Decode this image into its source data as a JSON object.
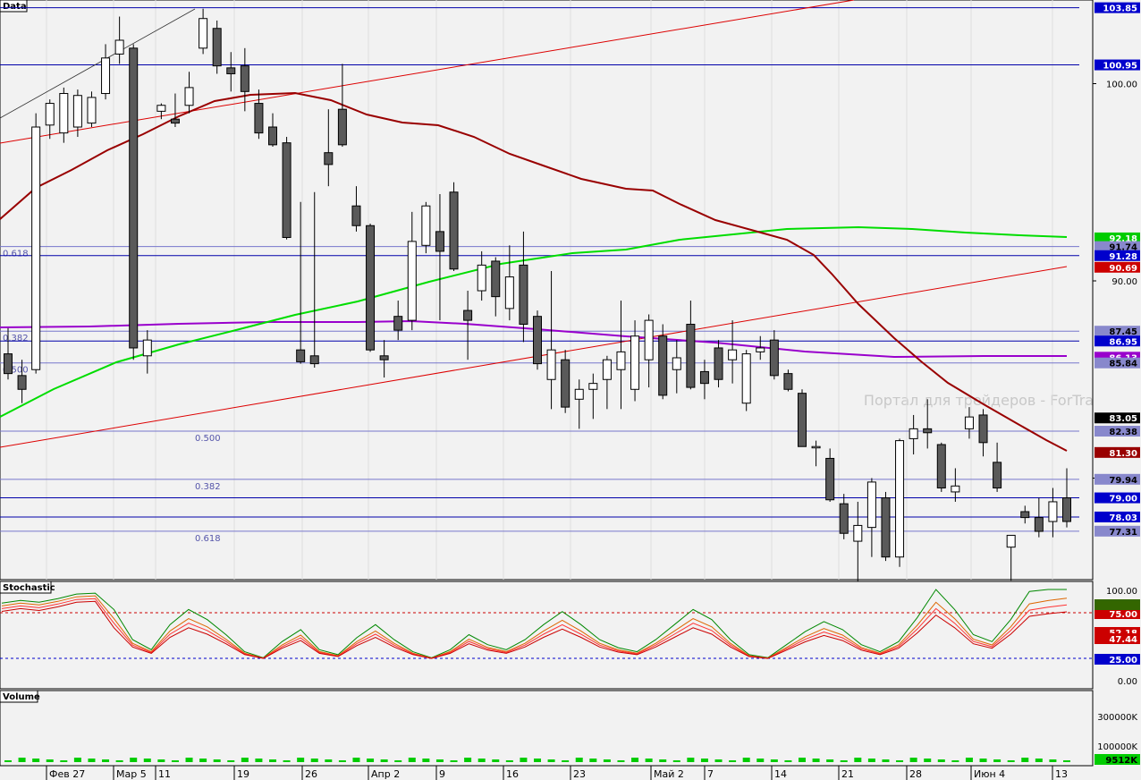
{
  "panels": {
    "data_title": "Data",
    "stochastic_title": "Stochastic",
    "volume_title": "Volume"
  },
  "watermark": "Портал для трейдеров - ForTrader.ru",
  "colors": {
    "background": "#f2f2f2",
    "up_candle": "#ffffff",
    "down_candle": "#5a5a5a",
    "ma_short": "#990000",
    "ma_medium": "#00dd00",
    "ma_long": "#9900cc",
    "trendline": "#dd0000",
    "level_line": "#0000aa",
    "fib_line": "#7777cc",
    "volume": "#00cc00"
  },
  "x_axis_labels": [
    "Фев 27",
    "Мар 5",
    "11",
    "19",
    "26",
    "Апр 2",
    "9",
    "16",
    "23",
    "Май 2",
    "7",
    "14",
    "21",
    "28",
    "Июн 4",
    "13"
  ],
  "price_axis": {
    "ticks": [
      "100.00",
      "90.00",
      "80.00"
    ],
    "markers": [
      {
        "label": "103.85",
        "bg": "#0000cc",
        "fg": "#ffffff"
      },
      {
        "label": "100.95",
        "bg": "#0000cc",
        "fg": "#ffffff"
      },
      {
        "label": "92.18",
        "bg": "#00cc00",
        "fg": "#ffffff"
      },
      {
        "label": "91.74",
        "bg": "#8888cc",
        "fg": "#000000"
      },
      {
        "label": "91.28",
        "bg": "#0000cc",
        "fg": "#ffffff"
      },
      {
        "label": "90.69",
        "bg": "#cc0000",
        "fg": "#ffffff"
      },
      {
        "label": "87.45",
        "bg": "#8888cc",
        "fg": "#000000"
      },
      {
        "label": "86.95",
        "bg": "#0000cc",
        "fg": "#ffffff"
      },
      {
        "label": "86.13",
        "bg": "#9900cc",
        "fg": "#ffffff"
      },
      {
        "label": "85.84",
        "bg": "#8888cc",
        "fg": "#000000"
      },
      {
        "label": "83.05",
        "bg": "#000000",
        "fg": "#ffffff"
      },
      {
        "label": "82.38",
        "bg": "#8888cc",
        "fg": "#000000"
      },
      {
        "label": "81.30",
        "bg": "#990000",
        "fg": "#ffffff"
      },
      {
        "label": "79.94",
        "bg": "#8888cc",
        "fg": "#000000"
      },
      {
        "label": "79.00",
        "bg": "#0000cc",
        "fg": "#ffffff"
      },
      {
        "label": "78.03",
        "bg": "#0000cc",
        "fg": "#ffffff"
      },
      {
        "label": "77.31",
        "bg": "#8888cc",
        "fg": "#000000"
      }
    ]
  },
  "levels": [
    {
      "price": 103.85,
      "kind": "level"
    },
    {
      "price": 100.95,
      "kind": "level"
    },
    {
      "price": 91.74,
      "kind": "fib",
      "label": "0.618"
    },
    {
      "price": 91.28,
      "kind": "level"
    },
    {
      "price": 87.45,
      "kind": "fib",
      "label": "0.382"
    },
    {
      "price": 86.95,
      "kind": "level"
    },
    {
      "price": 85.84,
      "kind": "fib",
      "label": "0.500"
    },
    {
      "price": 82.38,
      "kind": "fib",
      "label": "0.500"
    },
    {
      "price": 79.94,
      "kind": "fib",
      "label": "0.382"
    },
    {
      "price": 79.0,
      "kind": "level"
    },
    {
      "price": 78.03,
      "kind": "level"
    },
    {
      "price": 77.31,
      "kind": "fib",
      "label": "0.618"
    }
  ],
  "stochastic_axis": {
    "ticks": [
      "100.00",
      "0.00"
    ],
    "markers": [
      {
        "label": "75.00",
        "bg": "#cc0000",
        "fg": "#ffffff"
      },
      {
        "label": "52.18",
        "bg": "#cc0000",
        "fg": "#ffffff"
      },
      {
        "label": "47.44",
        "bg": "#cc0000",
        "fg": "#ffffff"
      },
      {
        "label": "25.00",
        "bg": "#0000cc",
        "fg": "#ffffff"
      }
    ]
  },
  "volume_axis": {
    "ticks": [
      "300000K",
      "100000K"
    ],
    "marker": {
      "label": "9512K",
      "bg": "#00cc00",
      "fg": "#000000"
    }
  },
  "chart_data": {
    "type": "candlestick",
    "price_range": [
      73.5,
      104.5
    ],
    "candles": [
      [
        86.3,
        87.6,
        85.0,
        85.3
      ],
      [
        85.2,
        86.0,
        83.8,
        84.5
      ],
      [
        85.5,
        98.5,
        85.3,
        97.8
      ],
      [
        97.9,
        99.2,
        97.2,
        99.0
      ],
      [
        97.5,
        99.8,
        97.0,
        99.5
      ],
      [
        97.8,
        99.7,
        97.3,
        99.4
      ],
      [
        98.0,
        99.6,
        97.8,
        99.3
      ],
      [
        99.5,
        102.0,
        99.2,
        101.3
      ],
      [
        101.5,
        103.4,
        101.0,
        102.2
      ],
      [
        101.8,
        102.0,
        86.0,
        86.6
      ],
      [
        86.2,
        87.5,
        85.3,
        87.0
      ],
      [
        98.6,
        99.0,
        98.2,
        98.9
      ],
      [
        98.2,
        99.5,
        97.8,
        98.0
      ],
      [
        98.9,
        100.6,
        98.5,
        99.8
      ],
      [
        101.8,
        103.8,
        101.5,
        103.3
      ],
      [
        102.8,
        103.2,
        100.5,
        100.9
      ],
      [
        100.8,
        101.6,
        99.6,
        100.5
      ],
      [
        100.9,
        101.8,
        98.6,
        99.6
      ],
      [
        99.0,
        99.7,
        97.2,
        97.5
      ],
      [
        97.8,
        98.5,
        96.8,
        96.9
      ],
      [
        97.0,
        97.3,
        92.1,
        92.2
      ],
      [
        86.5,
        94.0,
        85.8,
        85.9
      ],
      [
        86.2,
        94.5,
        85.6,
        85.8
      ],
      [
        96.5,
        98.7,
        94.8,
        95.9
      ],
      [
        98.7,
        101.0,
        96.8,
        96.9
      ],
      [
        93.8,
        94.8,
        92.5,
        92.8
      ],
      [
        92.8,
        92.9,
        86.4,
        86.5
      ],
      [
        86.2,
        87.0,
        85.1,
        86.0
      ],
      [
        88.2,
        89.0,
        87.0,
        87.5
      ],
      [
        88.0,
        93.5,
        87.5,
        92.0
      ],
      [
        91.8,
        94.0,
        91.4,
        93.8
      ],
      [
        92.5,
        94.4,
        88.0,
        91.5
      ],
      [
        94.5,
        95.0,
        90.5,
        90.6
      ],
      [
        88.5,
        89.5,
        86.0,
        88.0
      ],
      [
        89.5,
        91.5,
        89.0,
        90.8
      ],
      [
        91.0,
        91.2,
        88.2,
        89.2
      ],
      [
        88.6,
        91.8,
        88.0,
        90.2
      ],
      [
        90.8,
        92.5,
        86.9,
        87.8
      ],
      [
        88.2,
        88.5,
        85.5,
        85.8
      ],
      [
        85.0,
        90.5,
        83.5,
        86.5
      ],
      [
        86.0,
        86.5,
        83.3,
        83.6
      ],
      [
        84.0,
        85.0,
        82.5,
        84.5
      ],
      [
        84.5,
        85.3,
        83.0,
        84.8
      ],
      [
        85.0,
        86.2,
        83.5,
        86.0
      ],
      [
        85.5,
        89.0,
        83.5,
        86.4
      ],
      [
        84.5,
        88.0,
        83.9,
        87.2
      ],
      [
        86.0,
        88.3,
        84.6,
        88.0
      ],
      [
        87.2,
        87.8,
        84.0,
        84.2
      ],
      [
        85.5,
        87.0,
        84.3,
        86.1
      ],
      [
        87.8,
        89.0,
        84.5,
        84.6
      ],
      [
        85.4,
        86.0,
        84.0,
        84.8
      ],
      [
        86.6,
        87.0,
        84.6,
        85.0
      ],
      [
        86.0,
        88.0,
        84.8,
        86.5
      ],
      [
        83.8,
        86.5,
        83.4,
        86.3
      ],
      [
        86.4,
        87.2,
        86.0,
        86.6
      ],
      [
        87.0,
        87.5,
        85.0,
        85.2
      ],
      [
        85.3,
        85.5,
        84.4,
        84.5
      ],
      [
        84.3,
        84.5,
        81.6,
        81.6
      ],
      [
        81.6,
        81.9,
        80.6,
        81.6
      ],
      [
        81.0,
        81.5,
        78.8,
        78.9
      ],
      [
        78.7,
        79.2,
        76.9,
        77.2
      ],
      [
        76.8,
        78.8,
        74.2,
        77.6
      ],
      [
        77.5,
        80.0,
        76.0,
        79.8
      ],
      [
        79.0,
        79.3,
        75.8,
        76.0
      ],
      [
        76.0,
        82.0,
        75.5,
        81.9
      ],
      [
        82.0,
        83.2,
        81.2,
        82.5
      ],
      [
        82.5,
        84.0,
        81.5,
        82.3
      ],
      [
        81.7,
        81.8,
        79.3,
        79.5
      ],
      [
        79.3,
        80.5,
        78.8,
        79.6
      ],
      [
        82.5,
        83.6,
        82.0,
        83.1
      ],
      [
        83.2,
        83.5,
        81.1,
        81.8
      ],
      [
        80.8,
        81.8,
        79.3,
        79.5
      ],
      [
        76.5,
        77.1,
        74.8,
        77.1
      ],
      [
        78.3,
        78.6,
        77.7,
        78.0
      ],
      [
        78.0,
        79.0,
        77.0,
        77.3
      ],
      [
        77.8,
        79.5,
        77.0,
        78.8
      ],
      [
        79.0,
        80.5,
        77.5,
        77.8
      ]
    ]
  }
}
